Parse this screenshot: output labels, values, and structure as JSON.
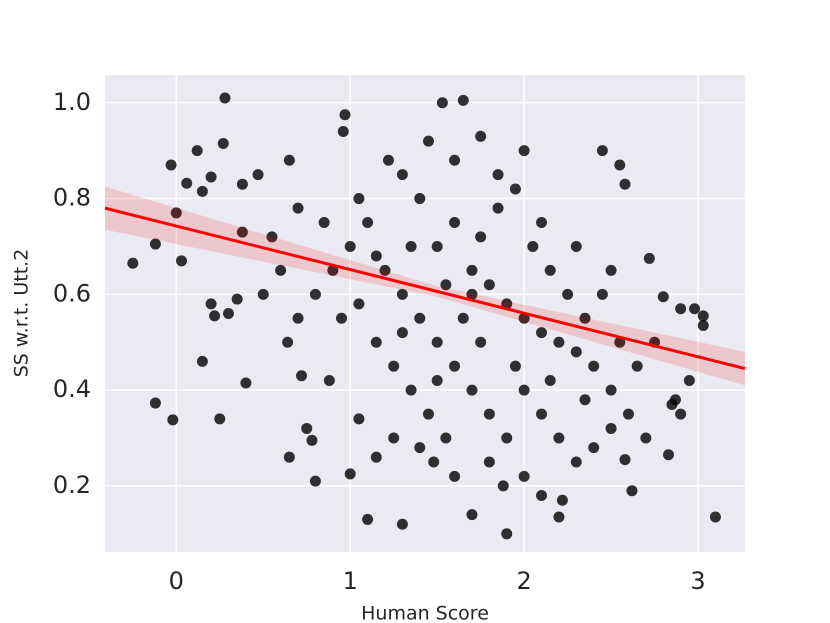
{
  "chart_data": {
    "type": "scatter",
    "xlabel": "Human Score",
    "ylabel": "SS w.r.t. Utt.2",
    "xlim": [
      -0.41,
      3.27
    ],
    "ylim": [
      0.062,
      1.058
    ],
    "xticks": [
      0,
      1,
      2,
      3
    ],
    "yticks": [
      {
        "value": 0.2,
        "label": "0.2"
      },
      {
        "value": 0.4,
        "label": "0.4"
      },
      {
        "value": 0.6,
        "label": "0.6"
      },
      {
        "value": 0.8,
        "label": "0.8"
      },
      {
        "value": 1.0,
        "label": "1.0"
      }
    ],
    "grid": true,
    "background": "#eaeaf2",
    "series": [
      {
        "color": "#000000",
        "x": [
          -0.25,
          -0.12,
          -0.12,
          -0.03,
          -0.02,
          0,
          0.03,
          0.06,
          0.12,
          0.15,
          0.2,
          0.27,
          0.28,
          0.3,
          0.35,
          0.38,
          0.4,
          0.38,
          0.22,
          0.25,
          0.15,
          0.2,
          0.47,
          0.65,
          0.64,
          0.65,
          0.72,
          0.75,
          0.78,
          0.8,
          0.88,
          0.97,
          0.96,
          1.0,
          1.05,
          1.1,
          1.15,
          1.3,
          1.48,
          1.53,
          1.65,
          1.7,
          1.9,
          1.88,
          2.0,
          2.45,
          2.55,
          2.58,
          2.72,
          2.8,
          2.9,
          2.95,
          2.98,
          3.03,
          3.03,
          3.1,
          2.83,
          2.87,
          2.9,
          2.85,
          2.62,
          2.58,
          2.2,
          2.22,
          2.1,
          1.3,
          1.4,
          1.5,
          1.6,
          1.7,
          1.8,
          1.9,
          2.0,
          2.1,
          2.2,
          2.3,
          1.2,
          1.3,
          1.4,
          1.5,
          1.6,
          1.7,
          1.8,
          1.9,
          2.0,
          2.1,
          2.2,
          2.3,
          2.4,
          2.5,
          2.6,
          2.7,
          1.1,
          1.0,
          0.9,
          0.8,
          0.7,
          0.6,
          0.5,
          1.15,
          1.25,
          1.35,
          1.45,
          1.55,
          1.65,
          1.75,
          1.85,
          1.95,
          2.05,
          2.15,
          2.25,
          2.35,
          2.45,
          2.55,
          2.65,
          2.75,
          1.22,
          1.45,
          1.6,
          1.75,
          1.85,
          2.1,
          2.3,
          2.5,
          1.05,
          0.85,
          0.7,
          0.55,
          1.25,
          1.4,
          1.6,
          1.8,
          2.0,
          2.4,
          2.5,
          0.95,
          1.05,
          1.15,
          1.35,
          1.55,
          1.75,
          1.95,
          2.15,
          2.35,
          1.5,
          1.3,
          1.7
        ],
        "values": [
          0.665,
          0.705,
          0.373,
          0.87,
          0.338,
          0.77,
          0.67,
          0.832,
          0.9,
          0.815,
          0.845,
          0.915,
          1.01,
          0.56,
          0.59,
          0.83,
          0.415,
          0.73,
          0.555,
          0.34,
          0.46,
          0.58,
          0.85,
          0.88,
          0.5,
          0.26,
          0.43,
          0.32,
          0.295,
          0.21,
          0.42,
          0.975,
          0.94,
          0.225,
          0.34,
          0.13,
          0.26,
          0.12,
          0.25,
          1.0,
          1.005,
          0.14,
          0.1,
          0.2,
          0.9,
          0.9,
          0.87,
          0.83,
          0.675,
          0.595,
          0.57,
          0.42,
          0.57,
          0.535,
          0.555,
          0.135,
          0.265,
          0.38,
          0.35,
          0.37,
          0.19,
          0.255,
          0.135,
          0.17,
          0.18,
          0.85,
          0.8,
          0.7,
          0.75,
          0.65,
          0.62,
          0.58,
          0.55,
          0.52,
          0.5,
          0.48,
          0.65,
          0.6,
          0.55,
          0.5,
          0.45,
          0.4,
          0.35,
          0.3,
          0.4,
          0.35,
          0.3,
          0.25,
          0.45,
          0.4,
          0.35,
          0.3,
          0.75,
          0.7,
          0.65,
          0.6,
          0.55,
          0.65,
          0.6,
          0.5,
          0.45,
          0.4,
          0.35,
          0.3,
          0.55,
          0.72,
          0.78,
          0.82,
          0.7,
          0.65,
          0.6,
          0.55,
          0.6,
          0.5,
          0.45,
          0.5,
          0.88,
          0.92,
          0.88,
          0.93,
          0.85,
          0.75,
          0.7,
          0.65,
          0.8,
          0.75,
          0.78,
          0.72,
          0.3,
          0.28,
          0.22,
          0.25,
          0.22,
          0.28,
          0.32,
          0.55,
          0.58,
          0.68,
          0.7,
          0.62,
          0.5,
          0.45,
          0.42,
          0.38,
          0.42,
          0.52,
          0.6
        ]
      }
    ],
    "regression": {
      "color": "#ff0000",
      "x": [
        -0.41,
        3.27
      ],
      "values": [
        0.78,
        0.445
      ]
    },
    "band": {
      "color": "#ff0000",
      "x": [
        -0.41,
        1.5,
        3.27
      ],
      "lower": [
        0.735,
        0.595,
        0.41
      ],
      "upper": [
        0.825,
        0.617,
        0.48
      ]
    }
  }
}
